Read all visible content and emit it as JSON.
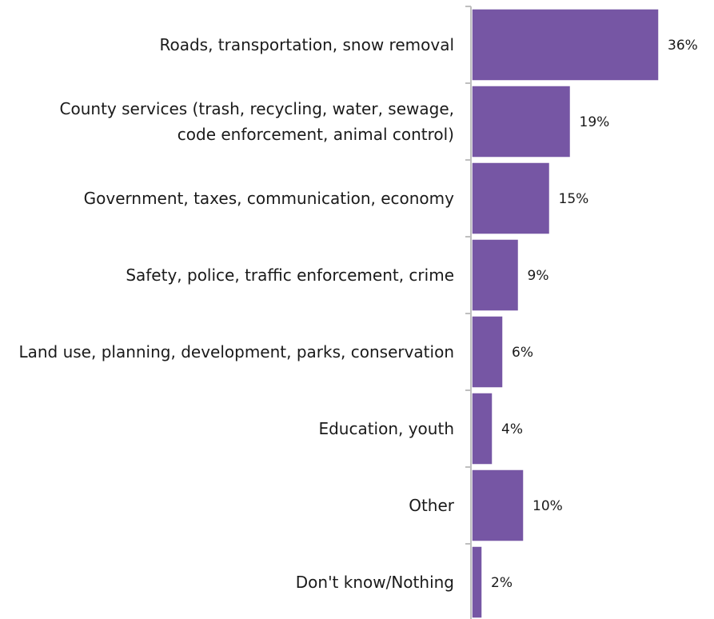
{
  "chart_data": {
    "type": "bar",
    "orientation": "horizontal",
    "categories": [
      [
        "Roads, transportation, snow removal"
      ],
      [
        "County services (trash, recycling, water, sewage,",
        "code enforcement, animal control)"
      ],
      [
        "Government, taxes, communication, economy"
      ],
      [
        "Safety, police, traffic enforcement, crime"
      ],
      [
        "Land use, planning, development, parks, conservation"
      ],
      [
        "Education, youth"
      ],
      [
        "Other"
      ],
      [
        "Don't know/Nothing"
      ]
    ],
    "values": [
      36,
      19,
      15,
      9,
      6,
      4,
      10,
      2
    ],
    "value_labels": [
      "36%",
      "19%",
      "15%",
      "9%",
      "6%",
      "4%",
      "10%",
      "2%"
    ],
    "bar_color": "#7656a4",
    "bar_edge_color": "#ffffff",
    "axis_color": "#bfbfbf"
  }
}
